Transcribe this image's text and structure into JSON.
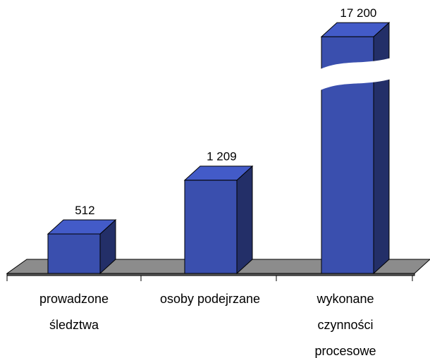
{
  "chart_data": {
    "type": "bar",
    "categories": [
      "prowadzone śledztwa",
      "osoby podejrzane",
      "wykonane czynności procesowe"
    ],
    "values": [
      512,
      1209,
      17200
    ],
    "value_labels": [
      "512",
      "1 209",
      "17 200"
    ],
    "color": "#3a4fae",
    "axis_break": true
  }
}
